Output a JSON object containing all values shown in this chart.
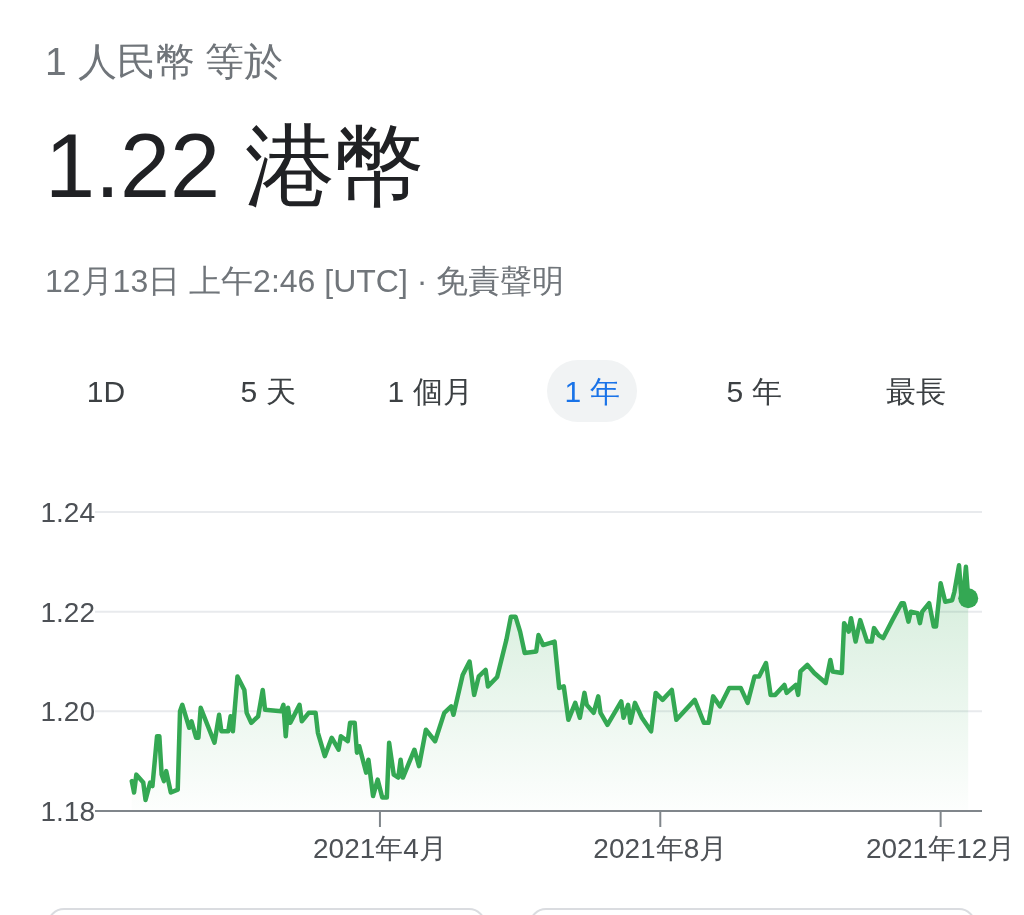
{
  "chart_data": {
    "type": "area",
    "title": "1 人民幣 等於",
    "subtitle": "1.22 港幣",
    "annotations": [
      "12月13日 上午2:46 [UTC] · 免責聲明",
      "1D",
      "5 天",
      "1 個月",
      "1 年",
      "5 年",
      "最長"
    ],
    "xlim": [
      "2020-11-28",
      "2021-12-19"
    ],
    "xticks": [
      {
        "value": "2021-04-01",
        "label": "2021年4月"
      },
      {
        "value": "2021-08-01",
        "label": "2021年8月"
      },
      {
        "value": "2021-12-01",
        "label": "2021年12月"
      }
    ],
    "ylim": [
      1.18,
      1.24
    ],
    "yticks": [
      1.18,
      {
        "value": 1.2,
        "label": "1.20"
      },
      1.22,
      1.24
    ],
    "grid": "y",
    "series": [
      {
        "color": "#34a853",
        "x": [
          "2020-12-14",
          "2020-12-15",
          "2020-12-16",
          "2020-12-19",
          "2020-12-20",
          "2020-12-22",
          "2020-12-23",
          "2020-12-25",
          "2020-12-26",
          "2020-12-27",
          "2020-12-28",
          "2020-12-29",
          "2020-12-31",
          "2021-01-03",
          "2021-01-04",
          "2021-01-05",
          "2021-01-08",
          "2021-01-09",
          "2021-01-11",
          "2021-01-12",
          "2021-01-13",
          "2021-01-19",
          "2021-01-21",
          "2021-01-22",
          "2021-01-25",
          "2021-01-26",
          "2021-01-27",
          "2021-01-29",
          "2021-02-01",
          "2021-02-02",
          "2021-02-04",
          "2021-02-07",
          "2021-02-09",
          "2021-02-10",
          "2021-02-17",
          "2021-02-18",
          "2021-02-19",
          "2021-02-20",
          "2021-02-21",
          "2021-02-25",
          "2021-02-26",
          "2021-03-01",
          "2021-03-04",
          "2021-03-05",
          "2021-03-08",
          "2021-03-11",
          "2021-03-14",
          "2021-03-15",
          "2021-03-18",
          "2021-03-19",
          "2021-03-21",
          "2021-03-22",
          "2021-03-23",
          "2021-03-26",
          "2021-03-27",
          "2021-03-29",
          "2021-03-31",
          "2021-04-02",
          "2021-04-04",
          "2021-04-05",
          "2021-04-07",
          "2021-04-09",
          "2021-04-10",
          "2021-04-11",
          "2021-04-16",
          "2021-04-18",
          "2021-04-21",
          "2021-04-25",
          "2021-04-29",
          "2021-05-02",
          "2021-05-03",
          "2021-05-07",
          "2021-05-10",
          "2021-05-12",
          "2021-05-14",
          "2021-05-17",
          "2021-05-18",
          "2021-05-22",
          "2021-05-26",
          "2021-05-28",
          "2021-05-30",
          "2021-06-01",
          "2021-06-03",
          "2021-06-08",
          "2021-06-09",
          "2021-06-11",
          "2021-06-16",
          "2021-06-18",
          "2021-06-20",
          "2021-06-22",
          "2021-06-25",
          "2021-06-27",
          "2021-06-29",
          "2021-06-30",
          "2021-07-03",
          "2021-07-05",
          "2021-07-06",
          "2021-07-09",
          "2021-07-15",
          "2021-07-16",
          "2021-07-18",
          "2021-07-19",
          "2021-07-21",
          "2021-07-24",
          "2021-07-28",
          "2021-07-30",
          "2021-08-02",
          "2021-08-06",
          "2021-08-08",
          "2021-08-16",
          "2021-08-20",
          "2021-08-22",
          "2021-08-24",
          "2021-08-27",
          "2021-08-31",
          "2021-09-05",
          "2021-09-08",
          "2021-09-11",
          "2021-09-13",
          "2021-09-16",
          "2021-09-18",
          "2021-09-20",
          "2021-09-24",
          "2021-09-25",
          "2021-09-29",
          "2021-09-30",
          "2021-10-01",
          "2021-10-04",
          "2021-10-07",
          "2021-10-12",
          "2021-10-14",
          "2021-10-15",
          "2021-10-19",
          "2021-10-20",
          "2021-10-22",
          "2021-10-23",
          "2021-10-25",
          "2021-10-27",
          "2021-10-30",
          "2021-11-01",
          "2021-11-02",
          "2021-11-04",
          "2021-11-06",
          "2021-11-10",
          "2021-11-14",
          "2021-11-15",
          "2021-11-17",
          "2021-11-18",
          "2021-11-21",
          "2021-11-22",
          "2021-11-23",
          "2021-11-26",
          "2021-11-28",
          "2021-11-29",
          "2021-12-01",
          "2021-12-03",
          "2021-12-06",
          "2021-12-07",
          "2021-12-09",
          "2021-12-10",
          "2021-12-11",
          "2021-12-12",
          "2021-12-13"
        ],
        "values": [
          1.186,
          1.1837,
          1.1873,
          1.1857,
          1.1822,
          1.1857,
          1.185,
          1.195,
          1.195,
          1.1873,
          1.186,
          1.188,
          1.1837,
          1.1843,
          1.2,
          1.2013,
          1.1967,
          1.198,
          1.1947,
          1.1947,
          1.2007,
          1.1937,
          1.1993,
          1.196,
          1.196,
          1.199,
          1.196,
          1.207,
          1.2043,
          1.1997,
          1.1977,
          1.199,
          1.2043,
          1.2003,
          1.2,
          1.2013,
          1.195,
          1.2007,
          1.1977,
          1.2013,
          1.198,
          1.1997,
          1.1997,
          1.1957,
          1.191,
          1.1947,
          1.1923,
          1.195,
          1.194,
          1.1977,
          1.1977,
          1.1917,
          1.193,
          1.1877,
          1.1903,
          1.183,
          1.1863,
          1.1827,
          1.1827,
          1.1937,
          1.1873,
          1.1867,
          1.1903,
          1.1867,
          1.1923,
          1.189,
          1.1963,
          1.194,
          1.1997,
          1.201,
          1.1993,
          1.2073,
          1.21,
          1.2033,
          1.207,
          1.2083,
          1.205,
          1.2069,
          1.2143,
          1.219,
          1.219,
          1.216,
          1.2117,
          1.212,
          1.2153,
          1.2133,
          1.214,
          1.2047,
          1.205,
          1.1983,
          1.2017,
          1.1987,
          1.2037,
          1.2013,
          1.1997,
          1.203,
          1.1997,
          1.1973,
          1.202,
          1.1987,
          1.2013,
          1.1977,
          1.2017,
          1.1987,
          1.196,
          1.2037,
          1.2023,
          1.2043,
          1.1983,
          1.2023,
          1.1977,
          1.1977,
          1.203,
          1.201,
          1.2047,
          1.2047,
          1.2017,
          1.207,
          1.207,
          1.2097,
          1.2033,
          1.2033,
          1.2053,
          1.2037,
          1.2053,
          1.2033,
          1.208,
          1.2093,
          1.2077,
          1.2057,
          1.2103,
          1.208,
          1.2077,
          1.2177,
          1.216,
          1.2187,
          1.214,
          1.2183,
          1.214,
          1.214,
          1.2167,
          1.2153,
          1.2147,
          1.2183,
          1.2217,
          1.2217,
          1.218,
          1.22,
          1.2197,
          1.2177,
          1.22,
          1.2217,
          1.217,
          1.217,
          1.2257,
          1.222,
          1.2223,
          1.224,
          1.2293,
          1.223,
          1.2237,
          1.229,
          1.2227
        ]
      },
      {
        "type": "scatter",
        "color": "#34a853",
        "marker": "circle",
        "x": [
          "2021-12-13"
        ],
        "values": [
          1.2227
        ]
      }
    ]
  }
}
